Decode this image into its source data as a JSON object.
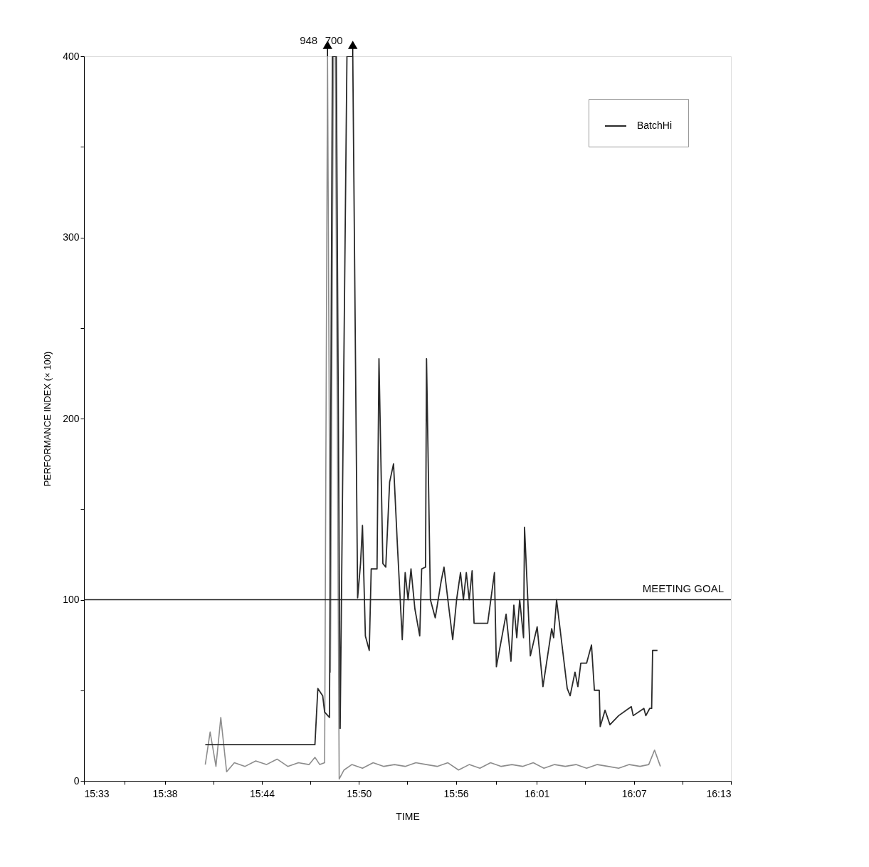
{
  "chart_data": {
    "type": "line",
    "xlabel": "TIME",
    "ylabel": "PERFORMANCE INDEX (× 100)",
    "xlim": [
      15.55,
      16.2167
    ],
    "ylim": [
      0,
      400
    ],
    "xticks": [
      {
        "value": 15.55,
        "label": "15:33"
      },
      {
        "value": 15.5917,
        "label": null
      },
      {
        "value": 15.6333,
        "label": "15:38"
      },
      {
        "value": 15.6833,
        "label": null
      },
      {
        "value": 15.7333,
        "label": "15:44"
      },
      {
        "value": 15.7833,
        "label": null
      },
      {
        "value": 15.8333,
        "label": "15:50"
      },
      {
        "value": 15.8833,
        "label": null
      },
      {
        "value": 15.9333,
        "label": "15:56"
      },
      {
        "value": 15.975,
        "label": null
      },
      {
        "value": 16.0167,
        "label": "16:01"
      },
      {
        "value": 16.0667,
        "label": null
      },
      {
        "value": 16.1167,
        "label": "16:07"
      },
      {
        "value": 16.1667,
        "label": null
      },
      {
        "value": 16.2167,
        "label": "16:13"
      }
    ],
    "yticks": [
      0,
      {
        "value": 50,
        "label": null
      },
      100,
      {
        "value": 150,
        "label": null
      },
      200,
      {
        "value": 250,
        "label": null
      },
      300,
      {
        "value": 350,
        "label": null
      },
      400
    ],
    "grid": false,
    "legend": "top right",
    "line_style": "solid",
    "marker": "none",
    "ref_lines": [
      {
        "axis": "y",
        "value": 100,
        "label": "MEETING GOAL",
        "color": "#222222"
      }
    ],
    "annotations": [
      {
        "text": "948",
        "x": 15.801,
        "y": 400
      },
      {
        "text": "700",
        "x": 15.827,
        "y": 400
      }
    ],
    "series": [
      {
        "color": "#8c8c8c",
        "x": [
          15.675,
          15.68,
          15.686,
          15.691,
          15.697,
          15.705,
          15.716,
          15.727,
          15.738,
          15.749,
          15.76,
          15.771,
          15.782,
          15.788,
          15.793,
          15.798,
          15.801,
          15.804,
          15.807,
          15.809,
          15.813,
          15.818,
          15.826,
          15.837,
          15.848,
          15.859,
          15.87,
          15.881,
          15.892,
          15.903,
          15.914,
          15.925,
          15.936,
          15.947,
          15.958,
          15.969,
          15.98,
          15.991,
          16.002,
          16.013,
          16.024,
          16.035,
          16.046,
          16.057,
          16.068,
          16.079,
          16.09,
          16.101,
          16.112,
          16.123,
          16.132,
          16.138,
          16.144
        ],
        "values": [
          9,
          27,
          8,
          35,
          5,
          10,
          8,
          11,
          9,
          12,
          8,
          10,
          9,
          13,
          9,
          10,
          400,
          60,
          400,
          400,
          1,
          6,
          9,
          7,
          10,
          8,
          9,
          8,
          10,
          9,
          8,
          10,
          6,
          9,
          7,
          10,
          8,
          9,
          8,
          10,
          7,
          9,
          8,
          9,
          7,
          9,
          8,
          7,
          9,
          8,
          9,
          17,
          8
        ]
      },
      {
        "name": "BatchHi",
        "color": "#2a2a2a",
        "x": [
          15.675,
          15.788,
          15.791,
          15.796,
          15.798,
          15.803,
          15.806,
          15.81,
          15.814,
          15.821,
          15.827,
          15.832,
          15.835,
          15.837,
          15.84,
          15.844,
          15.846,
          15.852,
          15.854,
          15.858,
          15.861,
          15.865,
          15.869,
          15.873,
          15.878,
          15.881,
          15.884,
          15.887,
          15.891,
          15.896,
          15.898,
          15.902,
          15.903,
          15.907,
          15.912,
          15.918,
          15.921,
          15.925,
          15.93,
          15.934,
          15.938,
          15.941,
          15.944,
          15.947,
          15.95,
          15.952,
          15.966,
          15.973,
          15.975,
          15.985,
          15.99,
          15.993,
          15.996,
          15.999,
          16.003,
          16.004,
          16.01,
          16.017,
          16.023,
          16.032,
          16.034,
          16.037,
          16.048,
          16.051,
          16.056,
          16.059,
          16.062,
          16.068,
          16.073,
          16.076,
          16.081,
          16.082,
          16.087,
          16.092,
          16.101,
          16.114,
          16.116,
          16.127,
          16.129,
          16.133,
          16.135,
          16.136,
          16.141
        ],
        "values": [
          20,
          20,
          51,
          47,
          38,
          35,
          400,
          400,
          29,
          400,
          400,
          101,
          120,
          141,
          80,
          72,
          117,
          117,
          233,
          120,
          118,
          165,
          175,
          130,
          78,
          115,
          100,
          117,
          95,
          80,
          117,
          118,
          233,
          100,
          90,
          110,
          118,
          100,
          78,
          100,
          115,
          100,
          115,
          100,
          116,
          87,
          87,
          115,
          63,
          92,
          66,
          97,
          79,
          100,
          79,
          140,
          69,
          85,
          52,
          84,
          79,
          100,
          51,
          47,
          60,
          52,
          65,
          65,
          75,
          50,
          50,
          30,
          39,
          31,
          36,
          41,
          36,
          40,
          36,
          40,
          40,
          72,
          72
        ]
      }
    ]
  }
}
